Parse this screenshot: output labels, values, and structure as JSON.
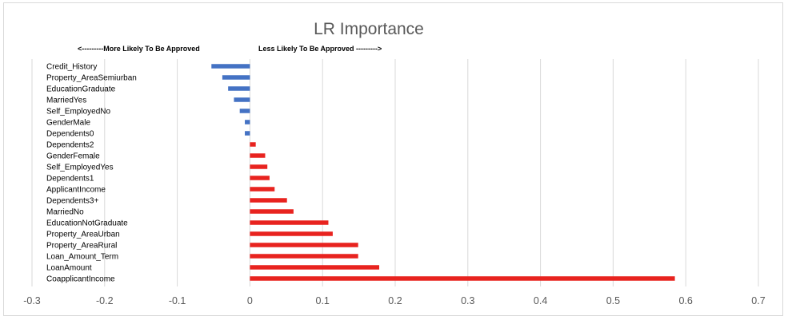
{
  "chart_data": {
    "type": "bar",
    "orientation": "horizontal",
    "title": "LR Importance",
    "annotations": {
      "left": "<---------More Likely To Be Approved",
      "right": "Less Likely To Be Approved --------->"
    },
    "categories": [
      "Credit_History",
      "Property_AreaSemiurban",
      "EducationGraduate",
      "MarriedYes",
      "Self_EmployedNo",
      "GenderMale",
      "Dependents0",
      "Dependents2",
      "GenderFemale",
      "Self_EmployedYes",
      "Dependents1",
      "ApplicantIncome",
      "Dependents3+",
      "MarriedNo",
      "EducationNotGraduate",
      "Property_AreaUrban",
      "Property_AreaRural",
      "Loan_Amount_Term",
      "LoanAmount",
      "CoapplicantIncome"
    ],
    "values": [
      -0.053,
      -0.038,
      -0.03,
      -0.022,
      -0.014,
      -0.007,
      -0.007,
      0.008,
      0.021,
      0.024,
      0.027,
      0.034,
      0.051,
      0.06,
      0.108,
      0.114,
      0.149,
      0.149,
      0.178,
      0.585
    ],
    "xlim": [
      -0.3,
      0.7
    ],
    "xticks": [
      -0.3,
      -0.2,
      -0.1,
      0,
      0.1,
      0.2,
      0.3,
      0.4,
      0.5,
      0.6,
      0.7
    ],
    "xtick_labels": [
      "-0.3",
      "-0.2",
      "-0.1",
      "0",
      "0.1",
      "0.2",
      "0.3",
      "0.4",
      "0.5",
      "0.6",
      "0.7"
    ],
    "grid": true,
    "colors": {
      "negative": "#4472c4",
      "positive": "#e8231f",
      "grid": "#d9d9d9"
    }
  }
}
